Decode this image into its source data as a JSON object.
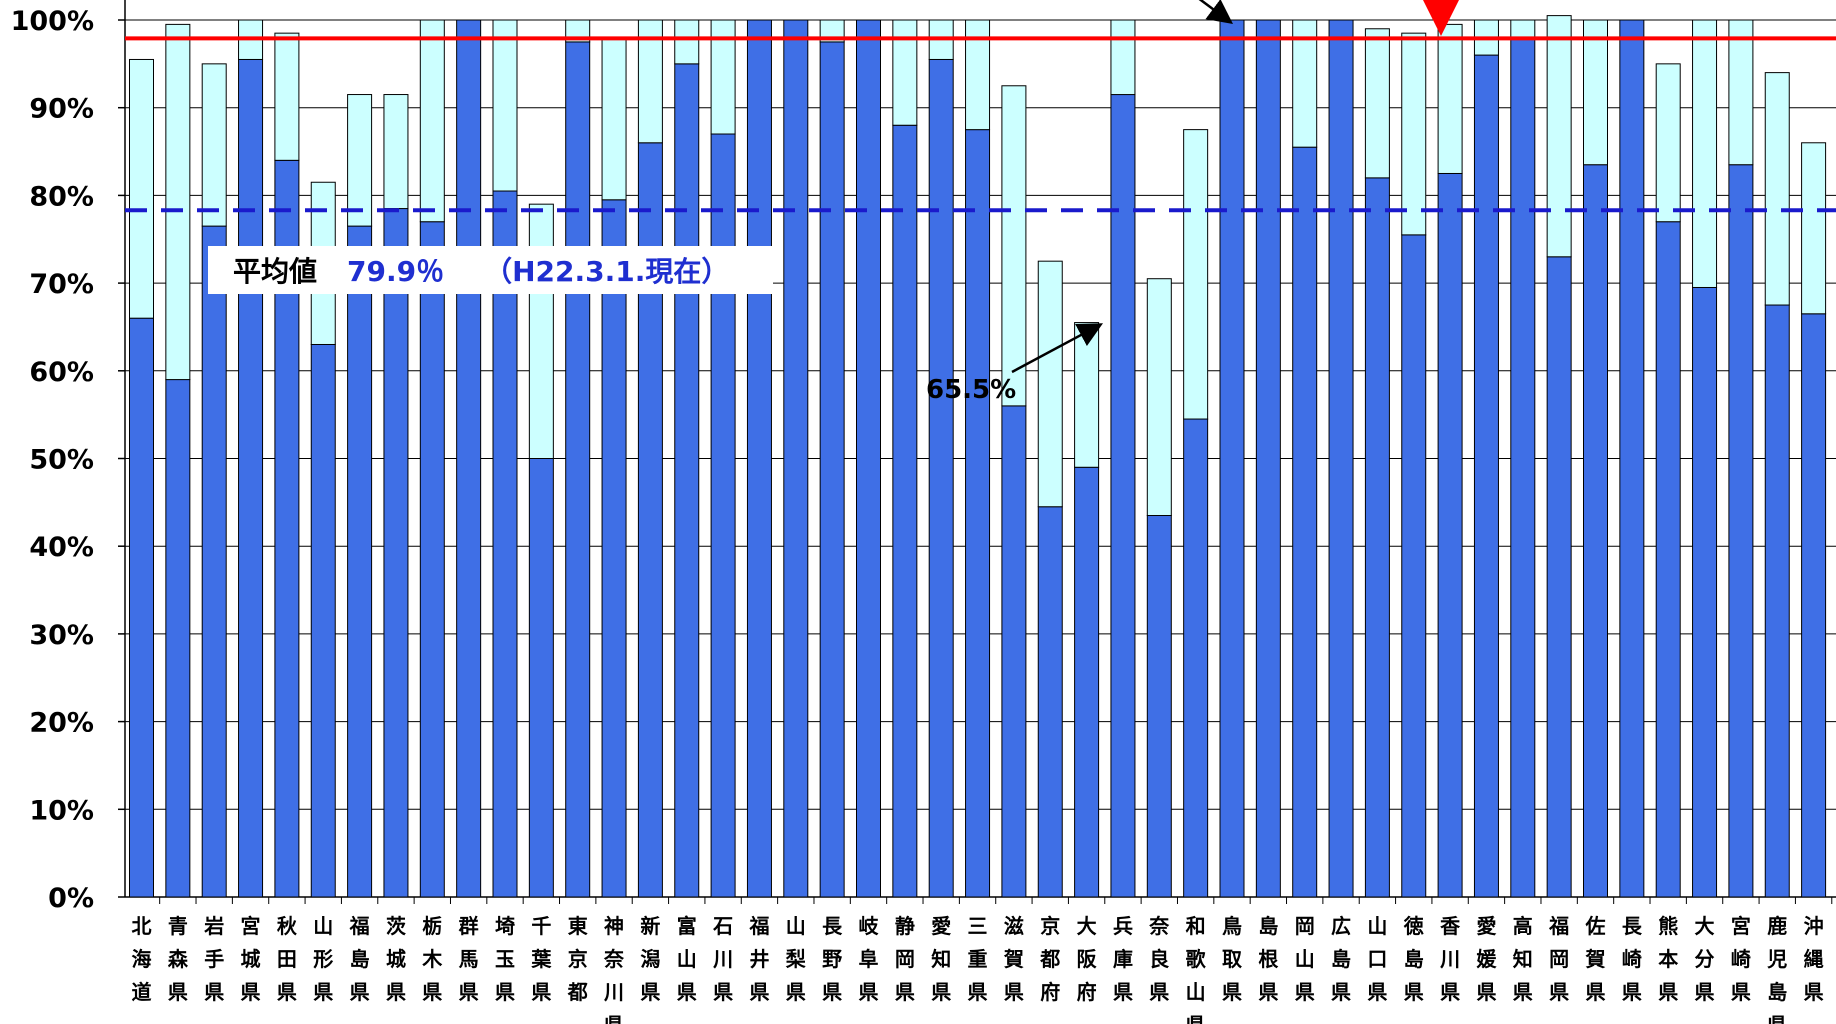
{
  "chart_data": {
    "type": "bar",
    "stacked": true,
    "categories": [
      "北海道",
      "青森県",
      "岩手県",
      "宮城県",
      "秋田県",
      "山形県",
      "福島県",
      "茨城県",
      "栃木県",
      "群馬県",
      "埼玉県",
      "千葉県",
      "東京都",
      "神奈川県",
      "新潟県",
      "富山県",
      "石川県",
      "福井県",
      "山梨県",
      "長野県",
      "岐阜県",
      "静岡県",
      "愛知県",
      "三重県",
      "滋賀県",
      "京都府",
      "大阪府",
      "兵庫県",
      "奈良県",
      "和歌山県",
      "鳥取県",
      "島根県",
      "岡山県",
      "広島県",
      "山口県",
      "徳島県",
      "香川県",
      "愛媛県",
      "高知県",
      "福岡県",
      "佐賀県",
      "長崎県",
      "熊本県",
      "大分県",
      "宮崎県",
      "鹿児島県",
      "沖縄県"
    ],
    "series": [
      {
        "values": [
          66,
          59,
          76.5,
          95.5,
          84,
          63,
          76.5,
          78.5,
          77,
          100,
          80.5,
          50,
          97.5,
          79.5,
          86,
          95,
          87,
          100,
          100,
          97.5,
          100,
          88,
          95.5,
          87.5,
          56,
          44.5,
          49,
          91.5,
          43.5,
          54.5,
          100,
          100,
          85.5,
          100,
          82,
          75.5,
          82.5,
          96,
          98,
          73,
          83.5,
          100,
          77,
          69.5,
          83.5,
          67.5,
          66.5
        ],
        "color": "#3f6fe6"
      },
      {
        "values": [
          29.5,
          40.5,
          18.5,
          4.5,
          14.5,
          18.5,
          15,
          13,
          23,
          0,
          19.5,
          29,
          2.5,
          18.5,
          14,
          5,
          13,
          0,
          0,
          2.5,
          0,
          12,
          4.5,
          12.5,
          36.5,
          28,
          16.5,
          8.5,
          27,
          33,
          0,
          0,
          14.5,
          0,
          17,
          23,
          17,
          4,
          2,
          27.5,
          16.5,
          0,
          18,
          30.5,
          16.5,
          26.5,
          19.5
        ],
        "color": "#ccffff"
      }
    ],
    "ylim": [
      0,
      100
    ],
    "yticks": [
      "0%",
      "10%",
      "20%",
      "30%",
      "40%",
      "50%",
      "60%",
      "70%",
      "80%",
      "90%",
      "100%"
    ],
    "grid": true,
    "reference_lines": [
      {
        "value": 97.9,
        "color": "#ff0000",
        "style": "solid"
      },
      {
        "value": 78.3,
        "color": "#1a1acc",
        "style": "dashed"
      }
    ],
    "annotations": {
      "average_label": "平均値",
      "average_value": "79.9％",
      "average_date": "（H22.3.1.現在）",
      "callout_value": "65.5%"
    }
  }
}
